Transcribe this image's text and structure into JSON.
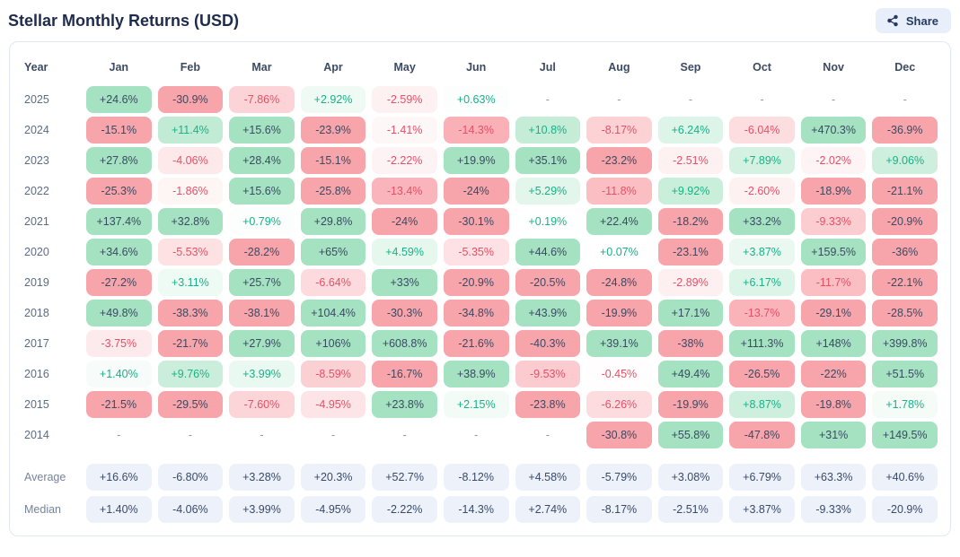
{
  "page": {
    "title": "Stellar Monthly Returns (USD)",
    "share_label": "Share"
  },
  "colors": {
    "positive_solid": "#a5e2c2",
    "negative_solid": "#f8a4ab",
    "positive_text": "#17b287",
    "negative_text": "#e84f66",
    "dark_text": "#3a4a63",
    "neutral_bg": "#edf1fa",
    "dash_text": "#8a97ab",
    "share_button_bg": "#e9eefb",
    "share_button_text": "#233a63",
    "title_text": "#1e2b4d",
    "card_border": "#e2e8f1"
  },
  "chart_data": {
    "type": "heatmap",
    "title": "Stellar Monthly Returns (USD)",
    "year_header": "Year",
    "months": [
      "Jan",
      "Feb",
      "Mar",
      "Apr",
      "May",
      "Jun",
      "Jul",
      "Aug",
      "Sep",
      "Oct",
      "Nov",
      "Dec"
    ],
    "rows": [
      {
        "year": "2025",
        "values": [
          "+24.6%",
          "-30.9%",
          "-7.86%",
          "+2.92%",
          "-2.59%",
          "+0.63%",
          "-",
          "-",
          "-",
          "-",
          "-",
          "-"
        ]
      },
      {
        "year": "2024",
        "values": [
          "-15.1%",
          "+11.4%",
          "+15.6%",
          "-23.9%",
          "-1.41%",
          "-14.3%",
          "+10.8%",
          "-8.17%",
          "+6.24%",
          "-6.04%",
          "+470.3%",
          "-36.9%"
        ]
      },
      {
        "year": "2023",
        "values": [
          "+27.8%",
          "-4.06%",
          "+28.4%",
          "-15.1%",
          "-2.22%",
          "+19.9%",
          "+35.1%",
          "-23.2%",
          "-2.51%",
          "+7.89%",
          "-2.02%",
          "+9.06%"
        ]
      },
      {
        "year": "2022",
        "values": [
          "-25.3%",
          "-1.86%",
          "+15.6%",
          "-25.8%",
          "-13.4%",
          "-24%",
          "+5.29%",
          "-11.8%",
          "+9.92%",
          "-2.60%",
          "-18.9%",
          "-21.1%"
        ]
      },
      {
        "year": "2021",
        "values": [
          "+137.4%",
          "+32.8%",
          "+0.79%",
          "+29.8%",
          "-24%",
          "-30.1%",
          "+0.19%",
          "+22.4%",
          "-18.2%",
          "+33.2%",
          "-9.33%",
          "-20.9%"
        ]
      },
      {
        "year": "2020",
        "values": [
          "+34.6%",
          "-5.53%",
          "-28.2%",
          "+65%",
          "+4.59%",
          "-5.35%",
          "+44.6%",
          "+0.07%",
          "-23.1%",
          "+3.87%",
          "+159.5%",
          "-36%"
        ]
      },
      {
        "year": "2019",
        "values": [
          "-27.2%",
          "+3.11%",
          "+25.7%",
          "-6.64%",
          "+33%",
          "-20.9%",
          "-20.5%",
          "-24.8%",
          "-2.89%",
          "+6.17%",
          "-11.7%",
          "-22.1%"
        ]
      },
      {
        "year": "2018",
        "values": [
          "+49.8%",
          "-38.3%",
          "-38.1%",
          "+104.4%",
          "-30.3%",
          "-34.8%",
          "+43.9%",
          "-19.9%",
          "+17.1%",
          "-13.7%",
          "-29.1%",
          "-28.5%"
        ]
      },
      {
        "year": "2017",
        "values": [
          "-3.75%",
          "-21.7%",
          "+27.9%",
          "+106%",
          "+608.8%",
          "-21.6%",
          "-40.3%",
          "+39.1%",
          "-38%",
          "+111.3%",
          "+148%",
          "+399.8%"
        ]
      },
      {
        "year": "2016",
        "values": [
          "+1.40%",
          "+9.76%",
          "+3.99%",
          "-8.59%",
          "-16.7%",
          "+38.9%",
          "-9.53%",
          "-0.45%",
          "+49.4%",
          "-26.5%",
          "-22%",
          "+51.5%"
        ]
      },
      {
        "year": "2015",
        "values": [
          "-21.5%",
          "-29.5%",
          "-7.60%",
          "-4.95%",
          "+23.8%",
          "+2.15%",
          "-23.8%",
          "-6.26%",
          "-19.9%",
          "+8.87%",
          "-19.8%",
          "+1.78%"
        ]
      },
      {
        "year": "2014",
        "values": [
          "-",
          "-",
          "-",
          "-",
          "-",
          "-",
          "-",
          "-30.8%",
          "+55.8%",
          "-47.8%",
          "+31%",
          "+149.5%"
        ]
      }
    ],
    "summary_rows": [
      {
        "label": "Average",
        "values": [
          "+16.6%",
          "-6.80%",
          "+3.28%",
          "+20.3%",
          "+52.7%",
          "-8.12%",
          "+4.58%",
          "-5.79%",
          "+3.08%",
          "+6.79%",
          "+63.3%",
          "+40.6%"
        ]
      },
      {
        "label": "Median",
        "values": [
          "+1.40%",
          "-4.06%",
          "+3.99%",
          "-4.95%",
          "-2.22%",
          "-14.3%",
          "+2.74%",
          "-8.17%",
          "-2.51%",
          "+3.87%",
          "-9.33%",
          "-20.9%"
        ]
      }
    ]
  }
}
